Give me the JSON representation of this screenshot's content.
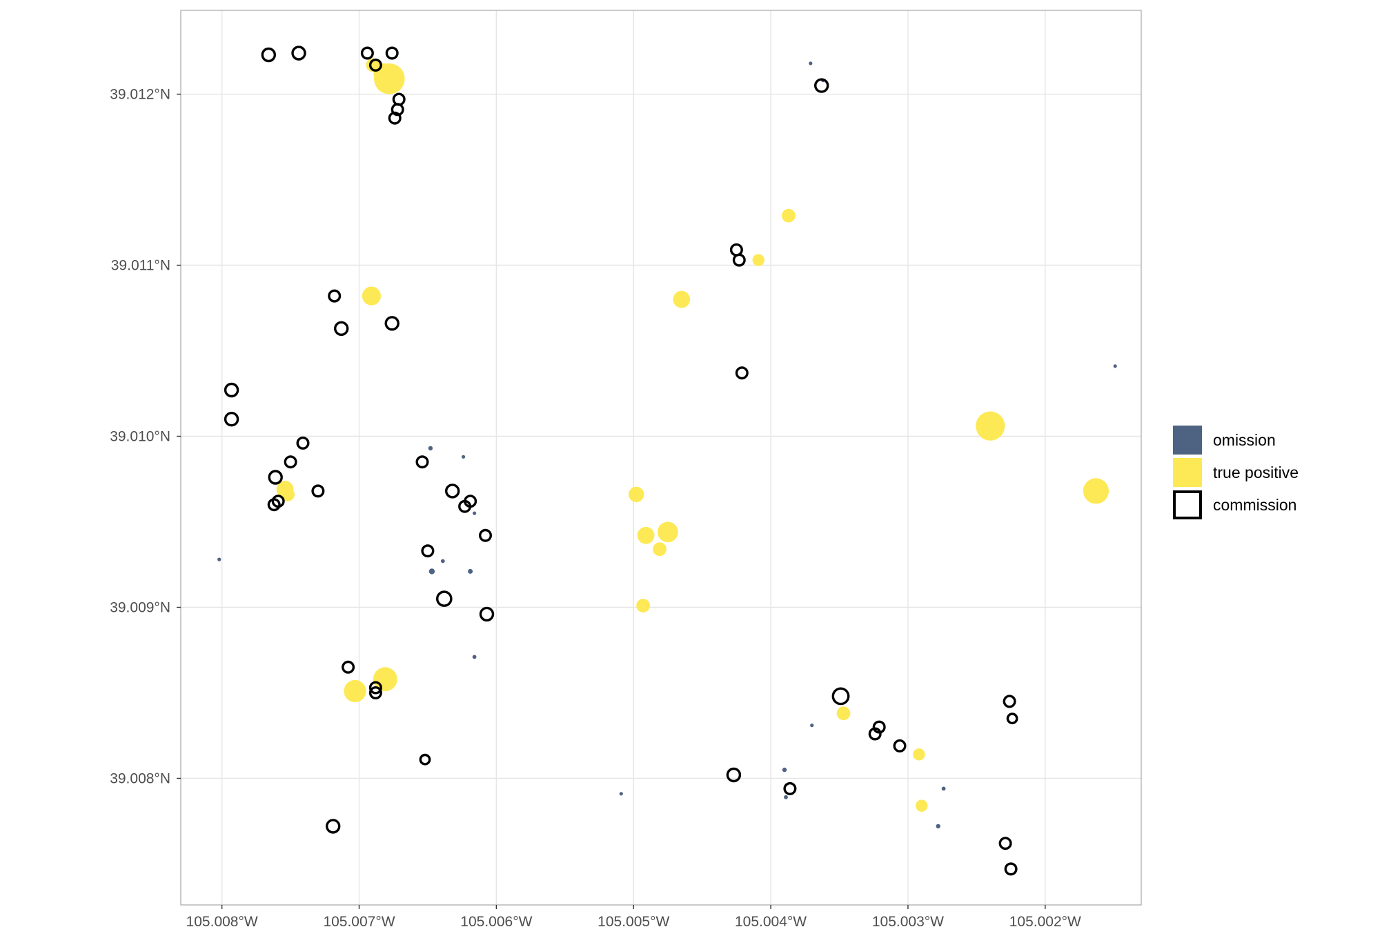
{
  "colors": {
    "omission": "#4e6282",
    "true_positive": "#fde955",
    "commission": "#000000",
    "grid": "#e5e5e5",
    "panel_border": "#b3b3b3"
  },
  "chart_data": {
    "type": "scatter",
    "x_range": [
      -105.0083,
      -105.0013
    ],
    "y_range": [
      39.00726,
      39.01249
    ],
    "grid": true,
    "legend_position": "right",
    "x_ticks": [
      {
        "value": -105.008,
        "label": "105.008°W"
      },
      {
        "value": -105.007,
        "label": "105.007°W"
      },
      {
        "value": -105.006,
        "label": "105.006°W"
      },
      {
        "value": -105.005,
        "label": "105.005°W"
      },
      {
        "value": -105.004,
        "label": "105.004°W"
      },
      {
        "value": -105.003,
        "label": "105.003°W"
      },
      {
        "value": -105.002,
        "label": "105.002°W"
      }
    ],
    "y_ticks": [
      {
        "value": 39.008,
        "label": "39.008°N"
      },
      {
        "value": 39.009,
        "label": "39.009°N"
      },
      {
        "value": 39.01,
        "label": "39.010°N"
      },
      {
        "value": 39.011,
        "label": "39.011°N"
      },
      {
        "value": 39.012,
        "label": "39.012°N"
      }
    ],
    "legend": [
      {
        "key": "omission",
        "label": "omission"
      },
      {
        "key": "true_positive",
        "label": "true positive"
      },
      {
        "key": "commission",
        "label": "commission"
      }
    ],
    "series": [
      {
        "key": "omission",
        "points": [
          [
            -105.00802,
            39.00928,
            0.8
          ],
          [
            -105.00648,
            39.00993,
            1.0
          ],
          [
            -105.00624,
            39.00988,
            0.8
          ],
          [
            -105.00616,
            39.00955,
            0.8
          ],
          [
            -105.00647,
            39.00921,
            1.3
          ],
          [
            -105.00639,
            39.00927,
            0.9
          ],
          [
            -105.00619,
            39.00921,
            1.1
          ],
          [
            -105.00616,
            39.00871,
            0.9
          ],
          [
            -105.00509,
            39.00791,
            0.8
          ],
          [
            -105.0039,
            39.00805,
            1.0
          ],
          [
            -105.00389,
            39.00789,
            0.9
          ],
          [
            -105.0037,
            39.00831,
            0.8
          ],
          [
            -105.00274,
            39.00794,
            0.9
          ],
          [
            -105.00278,
            39.00772,
            1.0
          ],
          [
            -105.00371,
            39.01218,
            0.8
          ],
          [
            -105.00362,
            39.01208,
            0.8
          ],
          [
            -105.00149,
            39.01041,
            0.8
          ]
        ]
      },
      {
        "key": "true_positive",
        "points": [
          [
            -105.00678,
            39.01209,
            3.6
          ],
          [
            -105.00682,
            39.01212,
            2.4
          ],
          [
            -105.0069,
            39.01217,
            1.6
          ],
          [
            -105.00691,
            39.01082,
            2.2
          ],
          [
            -105.00754,
            39.00969,
            2.0
          ],
          [
            -105.00752,
            39.00966,
            1.6
          ],
          [
            -105.00498,
            39.00966,
            1.8
          ],
          [
            -105.00491,
            39.00942,
            2.0
          ],
          [
            -105.00475,
            39.00944,
            2.4
          ],
          [
            -105.00481,
            39.00934,
            1.6
          ],
          [
            -105.00493,
            39.00901,
            1.6
          ],
          [
            -105.00703,
            39.00851,
            2.6
          ],
          [
            -105.00681,
            39.00858,
            2.8
          ],
          [
            -105.00465,
            39.0108,
            2.0
          ],
          [
            -105.00387,
            39.01129,
            1.6
          ],
          [
            -105.00409,
            39.01103,
            1.4
          ],
          [
            -105.00347,
            39.00838,
            1.6
          ],
          [
            -105.00292,
            39.00814,
            1.4
          ],
          [
            -105.0029,
            39.00784,
            1.4
          ],
          [
            -105.0024,
            39.01006,
            3.4
          ],
          [
            -105.00163,
            39.00968,
            3.0
          ]
        ]
      },
      {
        "key": "commission",
        "points": [
          [
            -105.00766,
            39.01223,
            1.6
          ],
          [
            -105.00744,
            39.01224,
            1.6
          ],
          [
            -105.00694,
            39.01224,
            1.4
          ],
          [
            -105.00688,
            39.01217,
            1.4
          ],
          [
            -105.00676,
            39.01224,
            1.4
          ],
          [
            -105.00671,
            39.01197,
            1.4
          ],
          [
            -105.00672,
            39.01191,
            1.4
          ],
          [
            -105.00674,
            39.01186,
            1.4
          ],
          [
            -105.00718,
            39.01082,
            1.4
          ],
          [
            -105.00676,
            39.01066,
            1.6
          ],
          [
            -105.00713,
            39.01063,
            1.6
          ],
          [
            -105.00793,
            39.01027,
            1.6
          ],
          [
            -105.00793,
            39.0101,
            1.6
          ],
          [
            -105.00741,
            39.00996,
            1.4
          ],
          [
            -105.0075,
            39.00985,
            1.4
          ],
          [
            -105.00761,
            39.00976,
            1.6
          ],
          [
            -105.00759,
            39.00962,
            1.4
          ],
          [
            -105.00762,
            39.0096,
            1.4
          ],
          [
            -105.0073,
            39.00968,
            1.4
          ],
          [
            -105.00654,
            39.00985,
            1.4
          ],
          [
            -105.00632,
            39.00968,
            1.6
          ],
          [
            -105.00619,
            39.00962,
            1.4
          ],
          [
            -105.00623,
            39.00959,
            1.4
          ],
          [
            -105.00608,
            39.00942,
            1.4
          ],
          [
            -105.0065,
            39.00933,
            1.4
          ],
          [
            -105.00638,
            39.00905,
            1.8
          ],
          [
            -105.00607,
            39.00896,
            1.6
          ],
          [
            -105.00708,
            39.00865,
            1.4
          ],
          [
            -105.00688,
            39.00853,
            1.4
          ],
          [
            -105.00688,
            39.0085,
            1.4
          ],
          [
            -105.00652,
            39.00811,
            1.2
          ],
          [
            -105.00719,
            39.00772,
            1.6
          ],
          [
            -105.00425,
            39.01109,
            1.4
          ],
          [
            -105.00423,
            39.01103,
            1.4
          ],
          [
            -105.00421,
            39.01037,
            1.4
          ],
          [
            -105.00363,
            39.01205,
            1.6
          ],
          [
            -105.00427,
            39.00802,
            1.6
          ],
          [
            -105.00386,
            39.00794,
            1.4
          ],
          [
            -105.00349,
            39.00848,
            2.0
          ],
          [
            -105.00324,
            39.00826,
            1.4
          ],
          [
            -105.00321,
            39.0083,
            1.4
          ],
          [
            -105.00306,
            39.00819,
            1.4
          ],
          [
            -105.00226,
            39.00845,
            1.4
          ],
          [
            -105.00224,
            39.00835,
            1.2
          ],
          [
            -105.00229,
            39.00762,
            1.4
          ],
          [
            -105.00225,
            39.00747,
            1.4
          ]
        ]
      }
    ]
  }
}
